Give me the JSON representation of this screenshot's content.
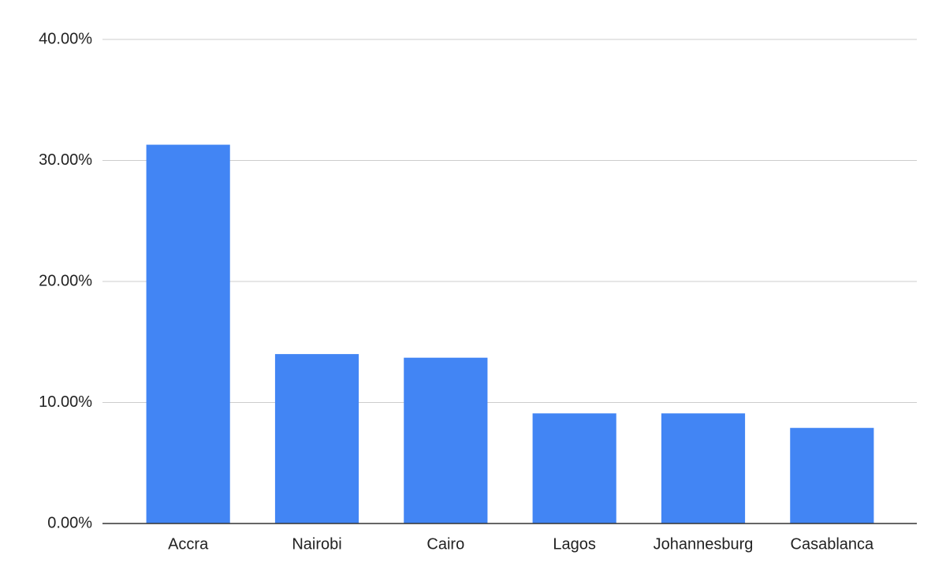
{
  "chart_data": {
    "type": "bar",
    "categories": [
      "Accra",
      "Nairobi",
      "Cairo",
      "Lagos",
      "Johannesburg",
      "Casablanca"
    ],
    "values": [
      31.3,
      14.0,
      13.7,
      9.1,
      9.1,
      7.9
    ],
    "color": "#4285f4",
    "ylim": [
      0,
      40
    ],
    "yticks": [
      {
        "value": 0,
        "label": "0.00%"
      },
      {
        "value": 10,
        "label": "10.00%"
      },
      {
        "value": 20,
        "label": "20.00%"
      },
      {
        "value": 30,
        "label": "30.00%"
      },
      {
        "value": 40,
        "label": "40.00%"
      }
    ],
    "grid": true
  }
}
